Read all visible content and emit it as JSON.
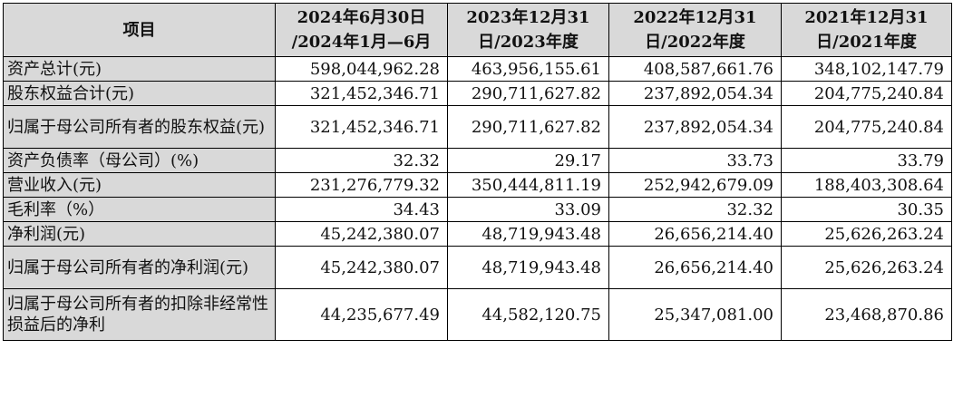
{
  "table": {
    "headers": [
      {
        "line1": "项目",
        "line2": ""
      },
      {
        "line1": "2024年6月30日",
        "line2": "/2024年1月—6月"
      },
      {
        "line1": "2023年12月31",
        "line2": "日/2023年度"
      },
      {
        "line1": "2022年12月31",
        "line2": "日/2022年度"
      },
      {
        "line1": "2021年12月31",
        "line2": "日/2021年度"
      }
    ],
    "rows": [
      {
        "label": "资产总计(元)",
        "values": [
          "598,044,962.28",
          "463,956,155.61",
          "408,587,661.76",
          "348,102,147.79"
        ]
      },
      {
        "label": "股东权益合计(元)",
        "values": [
          "321,452,346.71",
          "290,711,627.82",
          "237,892,054.34",
          "204,775,240.84"
        ]
      },
      {
        "label": "归属于母公司所有者的股东权益(元)",
        "values": [
          "321,452,346.71",
          "290,711,627.82",
          "237,892,054.34",
          "204,775,240.84"
        ]
      },
      {
        "label": "资产负债率（母公司）(%)",
        "values": [
          "32.32",
          "29.17",
          "33.73",
          "33.79"
        ]
      },
      {
        "label": "营业收入(元)",
        "values": [
          "231,276,779.32",
          "350,444,811.19",
          "252,942,679.09",
          "188,403,308.64"
        ]
      },
      {
        "label": "毛利率（%）",
        "values": [
          "34.43",
          "33.09",
          "32.32",
          "30.35"
        ]
      },
      {
        "label": "净利润(元)",
        "values": [
          "45,242,380.07",
          "48,719,943.48",
          "26,656,214.40",
          "25,626,263.24"
        ]
      },
      {
        "label": "归属于母公司所有者的净利润(元)",
        "values": [
          "45,242,380.07",
          "48,719,943.48",
          "26,656,214.40",
          "25,626,263.24"
        ]
      },
      {
        "label": "归属于母公司所有者的扣除非经常性损益后的净利",
        "values": [
          "44,235,677.49",
          "44,582,120.75",
          "25,347,081.00",
          "23,468,870.86"
        ]
      }
    ]
  }
}
